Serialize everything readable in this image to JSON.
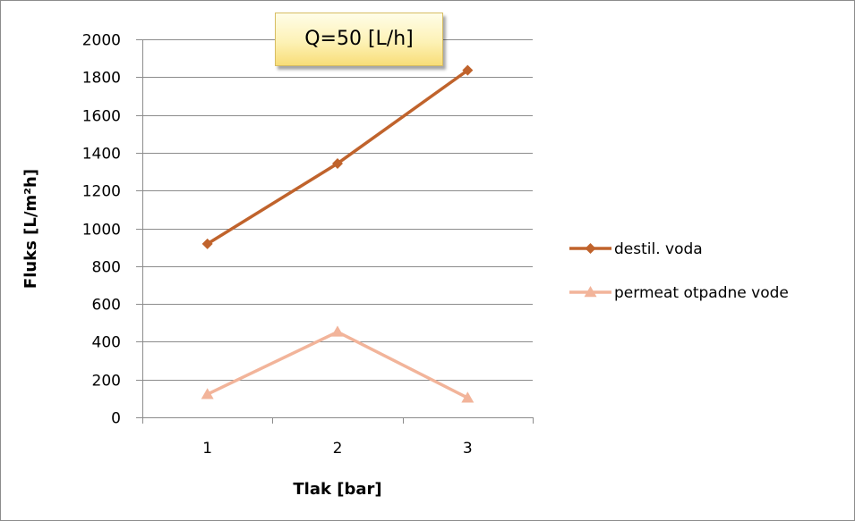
{
  "chart_data": {
    "type": "line",
    "title": "Q=50 [L/h]",
    "xlabel": "Tlak [bar]",
    "ylabel": "Fluks [L/m²h]",
    "categories": [
      "1",
      "2",
      "3"
    ],
    "yticks": [
      "0",
      "200",
      "400",
      "600",
      "800",
      "1000",
      "1200",
      "1400",
      "1600",
      "1800",
      "2000"
    ],
    "ylim": [
      0,
      2000
    ],
    "grid": true,
    "legend_position": "right",
    "series": [
      {
        "name": "destil. voda",
        "values": [
          918,
          1343,
          1836
        ],
        "color": "#c0632c",
        "marker": "diamond"
      },
      {
        "name": "permeat otpadne vode",
        "values": [
          122,
          452,
          103
        ],
        "color": "#f2b49a",
        "marker": "triangle"
      }
    ]
  }
}
